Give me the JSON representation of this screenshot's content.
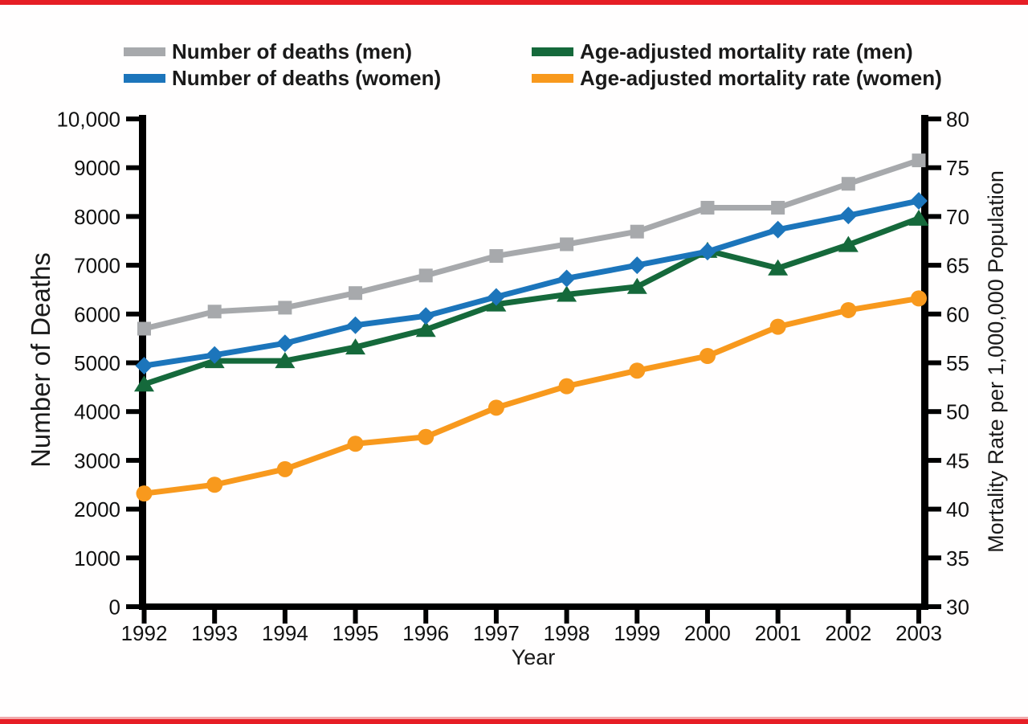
{
  "page": {
    "border_color": "#E61E25",
    "border_light_color": "#F2A9AB",
    "axis_color": "#000000"
  },
  "legend": {
    "columns": [
      {
        "items": [
          {
            "label": "Number of deaths (men)",
            "series": 0
          },
          {
            "label": "Number of deaths (women)",
            "series": 2
          }
        ]
      },
      {
        "items": [
          {
            "label": "Age-adjusted mortality rate (men)",
            "series": 1
          },
          {
            "label": "Age-adjusted mortality rate (women)",
            "series": 3
          }
        ]
      }
    ]
  },
  "chart_data": {
    "type": "line",
    "x_categories": [
      "1992",
      "1993",
      "1994",
      "1995",
      "1996",
      "1997",
      "1998",
      "1999",
      "2000",
      "2001",
      "2002",
      "2003"
    ],
    "xlabel": "Year",
    "left_axis": {
      "label": "Number of Deaths",
      "min": 0,
      "max": 10000,
      "step": 1000,
      "tick_labels": [
        "0",
        "1000",
        "2000",
        "3000",
        "4000",
        "5000",
        "6000",
        "7000",
        "8000",
        "9000",
        "10,000"
      ]
    },
    "right_axis": {
      "label": "Mortality Rate per 1,000,000 Population",
      "min": 30,
      "max": 80,
      "step": 5,
      "tick_labels": [
        "30",
        "35",
        "40",
        "45",
        "50",
        "55",
        "60",
        "65",
        "70",
        "75",
        "80"
      ]
    },
    "grid": false,
    "legend_position": "top",
    "series": [
      {
        "key": "deaths-men",
        "name": "Number of deaths (men)",
        "axis": "left",
        "color": "#A7A9AC",
        "marker": "square",
        "values": [
          5700,
          6050,
          6130,
          6430,
          6790,
          7190,
          7430,
          7690,
          8180,
          8180,
          8670,
          9150
        ]
      },
      {
        "key": "rate-men",
        "name": "Age-adjusted mortality rate (men)",
        "axis": "right",
        "color": "#15693B",
        "marker": "triangle",
        "values": [
          52.8,
          55.2,
          55.2,
          56.6,
          58.4,
          61.0,
          62.0,
          62.8,
          66.5,
          64.7,
          67.1,
          69.8
        ]
      },
      {
        "key": "deaths-women",
        "name": "Number of deaths (women)",
        "axis": "left",
        "color": "#1C75BB",
        "marker": "diamond",
        "values": [
          4940,
          5160,
          5400,
          5770,
          5960,
          6350,
          6730,
          7000,
          7280,
          7730,
          8020,
          8320
        ]
      },
      {
        "key": "rate-women",
        "name": "Age-adjusted mortality rate (women)",
        "axis": "right",
        "color": "#F8991D",
        "marker": "circle",
        "values": [
          41.6,
          42.5,
          44.1,
          46.7,
          47.4,
          50.4,
          52.6,
          54.2,
          55.7,
          58.7,
          60.4,
          61.6
        ]
      }
    ]
  }
}
